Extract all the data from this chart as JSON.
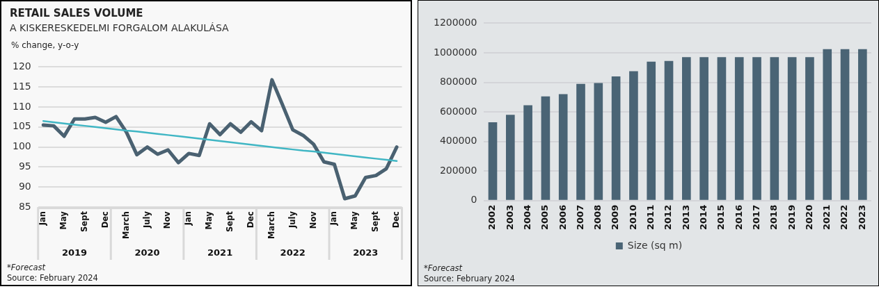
{
  "chart_data": [
    {
      "type": "line",
      "title": "RETAIL SALES VOLUME",
      "subtitle": "A KISKERESKEDELMI FORGALOM ALAKULÁSA",
      "ylabel": "% change, y-o-y",
      "categories": [
        "Jan",
        null,
        "May",
        null,
        "Sept",
        null,
        "Dec",
        null,
        "March",
        null,
        "July",
        null,
        "Nov",
        null,
        "Jan",
        null,
        "May",
        null,
        "Sept",
        null,
        "Dec",
        null,
        "March",
        null,
        "July",
        null,
        "Nov",
        null,
        "Jan",
        null,
        "May",
        null,
        "Sept",
        null,
        "Dec"
      ],
      "series": [
        {
          "color": "#4a6171",
          "values": [
            105.5,
            105.3,
            102.7,
            107.0,
            107.0,
            107.4,
            106.2,
            107.6,
            103.7,
            98.1,
            100.0,
            98.2,
            99.3,
            96.1,
            98.4,
            97.9,
            105.8,
            103.1,
            105.8,
            103.7,
            106.3,
            104.1,
            116.8,
            110.6,
            104.3,
            102.9,
            100.7,
            96.3,
            95.7,
            87.1,
            87.8,
            92.4,
            92.9,
            94.6,
            100.0
          ]
        },
        {
          "type": "line",
          "color": "#40b6c4",
          "values": [
            106.5,
            106.2,
            105.9,
            105.6,
            105.3,
            105.0,
            104.7,
            104.4,
            104.1,
            103.9,
            103.6,
            103.3,
            103.0,
            102.7,
            102.4,
            102.1,
            101.8,
            101.5,
            101.2,
            100.9,
            100.6,
            100.3,
            100.0,
            99.7,
            99.4,
            99.1,
            98.9,
            98.6,
            98.3,
            98.0,
            97.7,
            97.4,
            97.1,
            96.8,
            96.5
          ]
        }
      ],
      "ylim": [
        85,
        120
      ],
      "yticks": [
        85,
        90,
        95,
        100,
        105,
        110,
        115,
        120
      ],
      "grid": "y",
      "legend": false,
      "marker": "none",
      "annotations": [
        "2019",
        "2020",
        "2021",
        "2022",
        "2023",
        "*Forecast",
        "Source: February 2024"
      ]
    },
    {
      "type": "bar",
      "categories": [
        "2002",
        "2003",
        "2004",
        "2005",
        "2006",
        "2007",
        "2008",
        "2009",
        "2010",
        "2011",
        "2012",
        "2013",
        "2014",
        "2015",
        "2016",
        "2017",
        "2018",
        "2019",
        "2020",
        "2021",
        "2022",
        "2023"
      ],
      "series": [
        {
          "name": "Size (sq m)",
          "color": "#4a6475",
          "values": [
            530000,
            580000,
            645000,
            705000,
            720000,
            790000,
            795000,
            840000,
            875000,
            940000,
            945000,
            970000,
            970000,
            970000,
            970000,
            970000,
            970000,
            970000,
            970000,
            1025000,
            1025000,
            1025000
          ]
        }
      ],
      "ylim": [
        0,
        1200000
      ],
      "yticks": [
        0,
        200000,
        400000,
        600000,
        800000,
        1000000,
        1200000
      ],
      "grid": "y",
      "legend": "bottom",
      "annotations": [
        "*Forecast",
        "Source: February 2024"
      ]
    }
  ]
}
